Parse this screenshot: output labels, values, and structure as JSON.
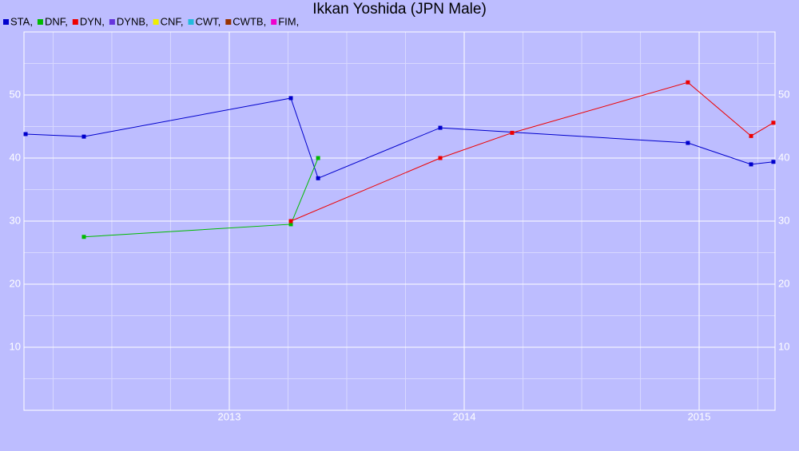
{
  "chart_data": {
    "type": "line",
    "title": "Ikkan Yoshida (JPN Male)",
    "xlim": [
      2012.126,
      2015.323
    ],
    "xticks": [
      2013,
      2014,
      2015
    ],
    "ylim": [
      0,
      60
    ],
    "yticks": [
      10,
      20,
      30,
      40,
      50
    ],
    "grid": true,
    "series": [
      {
        "name": "STA,",
        "color": "#0000cc",
        "x": [
          2012.133,
          2012.381,
          2013.262,
          2013.378,
          2013.898,
          2014.952,
          2015.221,
          2015.316
        ],
        "values": [
          43.8,
          43.4,
          49.5,
          36.8,
          44.8,
          42.4,
          39.0,
          39.4
        ]
      },
      {
        "name": "DNF,",
        "color": "#00bb00",
        "x": [
          2012.381,
          2013.262,
          2013.378
        ],
        "values": [
          27.5,
          29.5,
          40
        ]
      },
      {
        "name": "DYN,",
        "color": "#ee0000",
        "x": [
          2013.262,
          2013.898,
          2014.204,
          2014.952,
          2015.221,
          2015.316
        ],
        "values": [
          30,
          40,
          44,
          52,
          43.5,
          45.6
        ]
      },
      {
        "name": "DYNB,",
        "color": "#6633dd",
        "x": [],
        "values": []
      },
      {
        "name": "CNF,",
        "color": "#eeee00",
        "x": [],
        "values": []
      },
      {
        "name": "CWT,",
        "color": "#22bbdd",
        "x": [],
        "values": []
      },
      {
        "name": "CWTB,",
        "color": "#993300",
        "x": [],
        "values": []
      },
      {
        "name": "FIM,",
        "color": "#ee00cc",
        "x": [],
        "values": []
      }
    ]
  }
}
